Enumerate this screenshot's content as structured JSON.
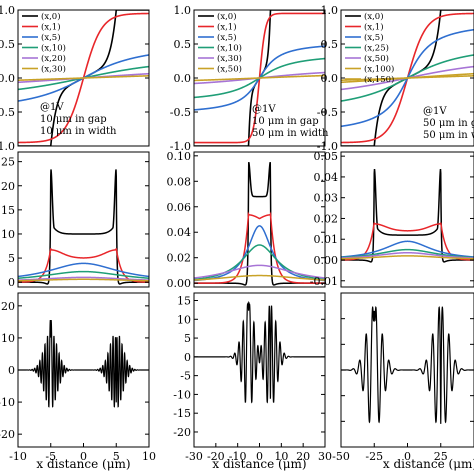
{
  "series_colors": [
    "#000000",
    "#e8262a",
    "#2f6fd0",
    "#1f9e77",
    "#a774d6",
    "#c9a227"
  ],
  "xlabel": "x distance (μm)",
  "chart_data": [
    {
      "id": "c1r1",
      "type": "line",
      "row": 0,
      "col": 0,
      "xlim": [
        -10,
        10
      ],
      "ylim": [
        -1,
        1
      ],
      "yticks": [
        -1.0,
        -0.5,
        0.0,
        0.5,
        1.0
      ],
      "yticklabels": [
        "-1.0",
        "-0.5",
        "0.0",
        "0.5",
        "1.0"
      ],
      "legend": [
        "(x,0)",
        "(x,1)",
        "(x,5)",
        "(x,10)",
        "(x,20)",
        "(x,30)"
      ],
      "annotation": [
        "@1V",
        "10 μm in gap",
        "10 μm in width"
      ],
      "gap": 10,
      "scales": [
        0.05,
        1,
        5,
        10,
        20,
        30
      ]
    },
    {
      "id": "c2r1",
      "type": "line",
      "row": 0,
      "col": 1,
      "xlim": [
        -30,
        30
      ],
      "ylim": [
        -1,
        1
      ],
      "yticks": [
        -1.0,
        -0.5,
        0.0,
        0.5,
        1.0
      ],
      "yticklabels": [
        "-1.0",
        "-0.5",
        "0.0",
        "0.5",
        "1.0"
      ],
      "legend": [
        "(x,0)",
        "(x,1)",
        "(x,5)",
        "(x,10)",
        "(x,30)",
        "(x,50)"
      ],
      "annotation": [
        "@1V",
        "10 μm in gap",
        "50 μm in width"
      ],
      "gap": 10,
      "scales": [
        0.05,
        1,
        5,
        10,
        30,
        50
      ]
    },
    {
      "id": "c3r1",
      "type": "line",
      "row": 0,
      "col": 2,
      "xlim": [
        -50,
        50
      ],
      "ylim": [
        -1,
        1
      ],
      "yticks": [
        -1.0,
        -0.5,
        0.0,
        0.5,
        1.0
      ],
      "yticklabels": [
        "-1.0",
        "-0.5",
        "0.0",
        "0.5",
        "1.0"
      ],
      "legend": [
        "(x,0)",
        "(x,1)",
        "(x,5)",
        "(x,25)",
        "(x,50)",
        "(x,100)",
        "(x,150)"
      ],
      "annotation": [
        "@1V",
        "50 μm in ga",
        "50 μm in w"
      ],
      "gap": 50,
      "scales": [
        0.05,
        1,
        5,
        25,
        50,
        100,
        150
      ]
    },
    {
      "id": "c1r2",
      "type": "line",
      "row": 1,
      "col": 0,
      "xlim": [
        -10,
        10
      ],
      "ylim": [
        -1,
        27
      ],
      "yticks": [
        0,
        5,
        10,
        15,
        20,
        25
      ],
      "yticklabels": [
        "0",
        "5",
        "10",
        "15",
        "20",
        "25"
      ],
      "series": [
        {
          "values": "peaks",
          "peak_x": [
            -5,
            5
          ],
          "peak_y": 26,
          "base_y": 10
        },
        {
          "values": "bumps",
          "peak_x": [
            -5,
            5
          ],
          "peak_y": 7,
          "base_y": 5
        },
        {
          "values": "arch",
          "peak_y": 3.9,
          "extent": 12
        },
        {
          "values": "arch",
          "peak_y": 2.2,
          "extent": 14
        },
        {
          "values": "arch",
          "peak_y": 1.0,
          "extent": 16
        },
        {
          "values": "arch",
          "peak_y": 0.6,
          "extent": 18
        }
      ]
    },
    {
      "id": "c2r2",
      "type": "line",
      "row": 1,
      "col": 1,
      "xlim": [
        -30,
        30
      ],
      "ylim": [
        -0.3,
        10.3
      ],
      "yticks": [
        0,
        2,
        4,
        6,
        8,
        10
      ],
      "yticklabels": [
        "0.00",
        "0.02",
        "0.04",
        "0.06",
        "0.08",
        "0.10"
      ],
      "series": [
        {
          "values": "peaks",
          "peak_x": [
            -5,
            5
          ],
          "peak_y": 10.0,
          "base_y": 6.8
        },
        {
          "values": "bumps",
          "peak_x": [
            -5,
            5
          ],
          "peak_y": 5.5,
          "base_y": 4.6
        },
        {
          "values": "arch",
          "peak_y": 4.5,
          "extent": 12
        },
        {
          "values": "arch",
          "peak_y": 3.0,
          "extent": 18
        },
        {
          "values": "arch",
          "peak_y": 1.4,
          "extent": 35
        },
        {
          "values": "arch",
          "peak_y": 0.6,
          "extent": 45
        }
      ]
    },
    {
      "id": "c3r2",
      "type": "line",
      "row": 1,
      "col": 2,
      "xlim": [
        -50,
        50
      ],
      "ylim": [
        -0.013,
        0.052
      ],
      "yticks": [
        -0.01,
        0,
        0.01,
        0.02,
        0.03,
        0.04,
        0.05
      ],
      "yticklabels": [
        "-0.01",
        "0.00",
        "0.01",
        "0.02",
        "0.03",
        "0.04",
        "0.05"
      ],
      "series": [
        {
          "values": "peaks",
          "peak_x": [
            -25,
            25
          ],
          "peak_y": 0.05,
          "base_y": 0.012
        },
        {
          "values": "bumps",
          "peak_x": [
            -25,
            25
          ],
          "peak_y": 0.018,
          "base_y": 0.014
        },
        {
          "values": "arch",
          "peak_y": 0.009,
          "extent": 40
        },
        {
          "values": "arch",
          "peak_y": 0.005,
          "extent": 50
        },
        {
          "values": "arch",
          "peak_y": 0.0035,
          "extent": 55
        },
        {
          "values": "arch",
          "peak_y": 0.002,
          "extent": 60
        }
      ]
    },
    {
      "id": "c1r3",
      "type": "line",
      "row": 2,
      "col": 0,
      "xlim": [
        -10,
        10
      ],
      "ylim": [
        -24,
        24
      ],
      "yticks": [
        -20,
        -10,
        0,
        10,
        20
      ],
      "yticklabels": [
        "-20",
        "-10",
        "0",
        "10",
        "20"
      ],
      "xticks": [
        -10,
        -5,
        0,
        5,
        10
      ],
      "xticklabels": [
        "-10",
        "-5",
        "0",
        "5",
        "10"
      ],
      "series": [
        {
          "values": "oscillation",
          "peak_x": [
            -5,
            5
          ],
          "amp": 12,
          "width": 1.4,
          "freq": 5
        }
      ]
    },
    {
      "id": "c2r3",
      "type": "line",
      "row": 2,
      "col": 1,
      "xlim": [
        -30,
        30
      ],
      "ylim": [
        -24,
        17
      ],
      "yticks": [
        -20,
        -15,
        -10,
        -5,
        0,
        5,
        10,
        15
      ],
      "yticklabels": [
        "-20",
        "-15",
        "-10",
        "-5",
        "0",
        "5",
        "10",
        "15"
      ],
      "xticks": [
        -30,
        -20,
        -10,
        0,
        10,
        20,
        30
      ],
      "xticklabels": [
        "-30",
        "-20",
        "-10",
        "0",
        "10",
        "20",
        "30"
      ],
      "series": [
        {
          "values": "oscillation",
          "peak_x": [
            -5,
            5
          ],
          "amp": 14,
          "width": 1.3,
          "freq": 3
        }
      ]
    },
    {
      "id": "c3r3",
      "type": "line",
      "row": 2,
      "col": 2,
      "xlim": [
        -50,
        50
      ],
      "ylim": [
        -6,
        6
      ],
      "yticks": [
        -4,
        -2,
        0,
        2,
        4
      ],
      "yticklabels": [
        "",
        "",
        "",
        "",
        ""
      ],
      "xticks": [
        -50,
        -25,
        0,
        25
      ],
      "xticklabels": [
        "-50",
        "-25",
        "0",
        "25"
      ],
      "series": [
        {
          "values": "oscillation",
          "peak_x": [
            -25,
            25
          ],
          "amp": 5,
          "width": 1.6,
          "freq": 2
        }
      ]
    }
  ]
}
